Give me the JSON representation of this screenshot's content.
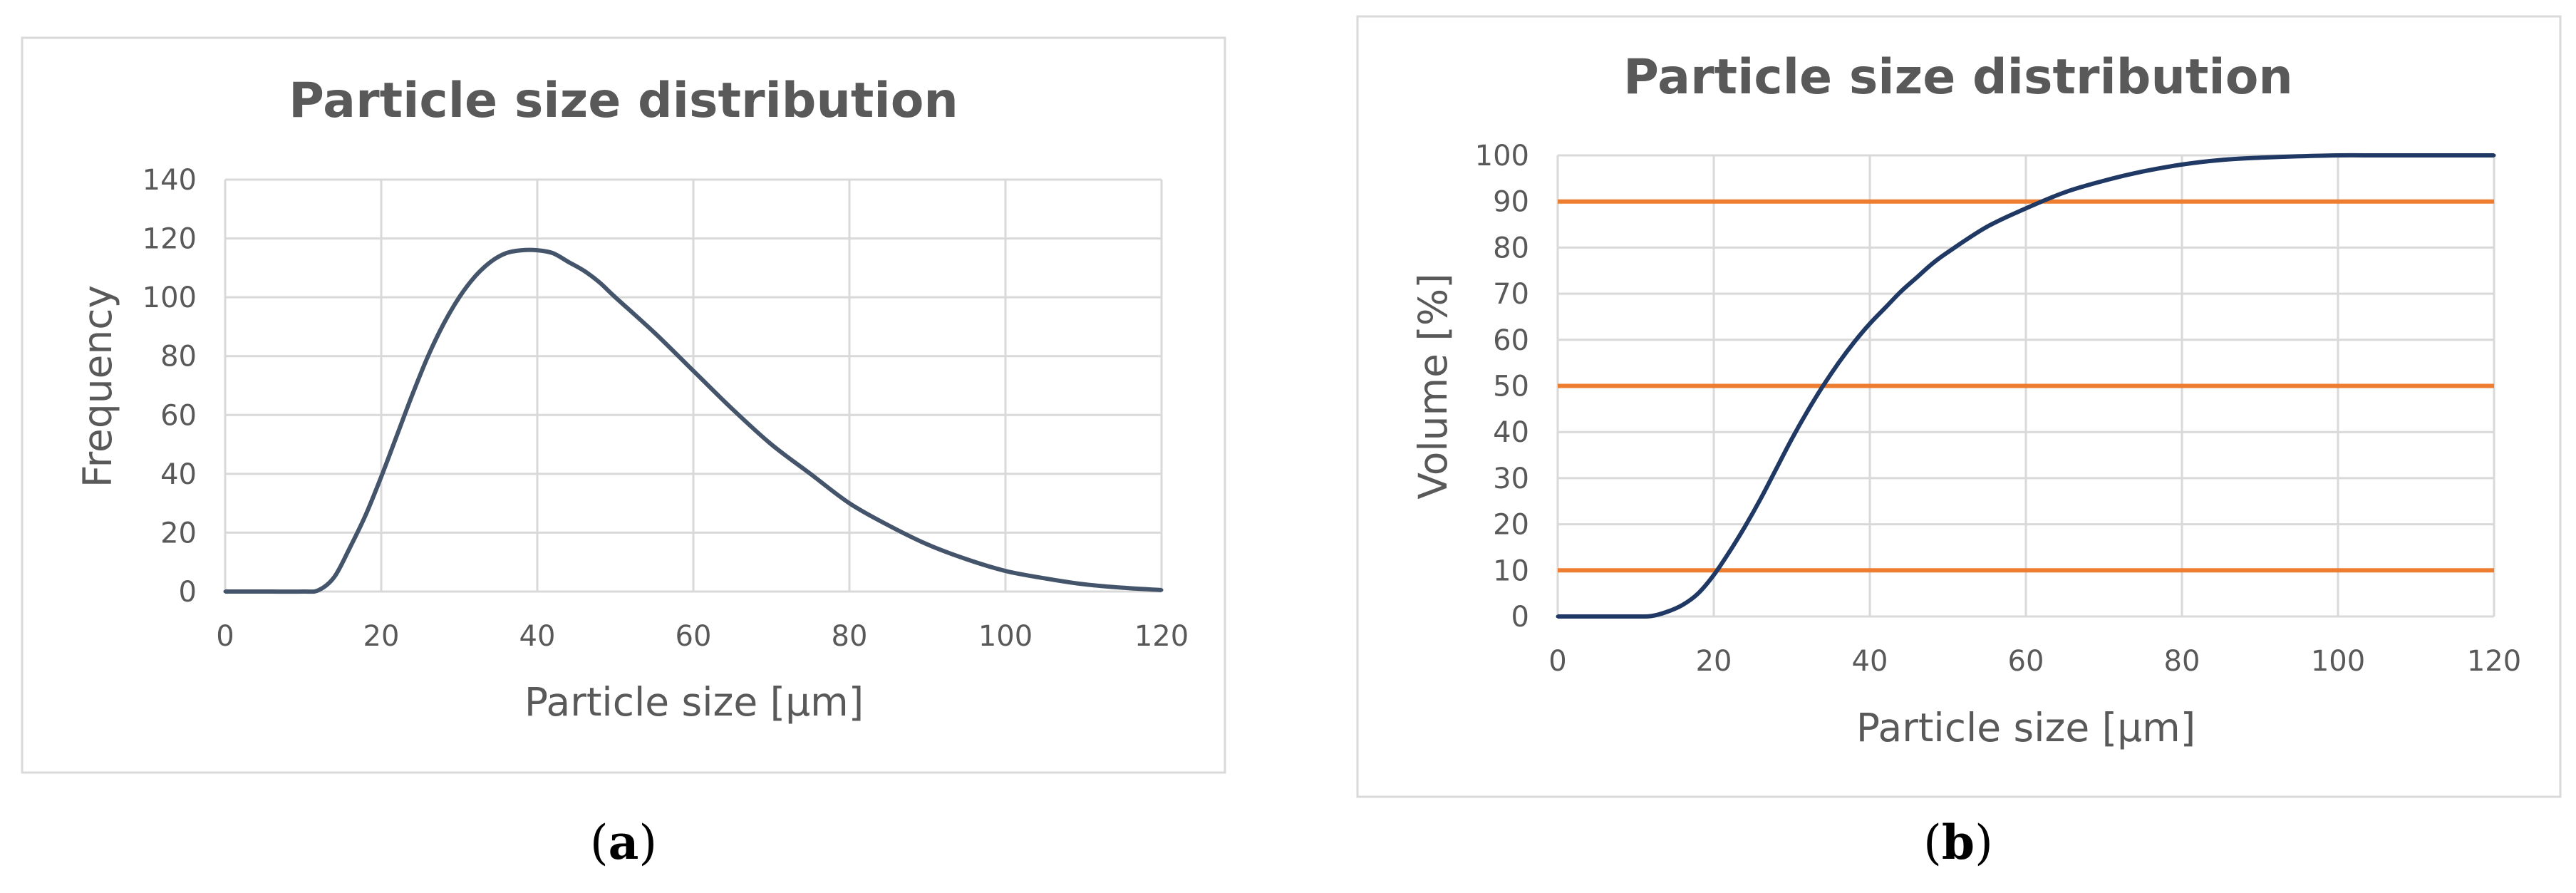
{
  "panels": [
    {
      "caption_open": "(",
      "caption_letter": "a",
      "caption_close": ")"
    },
    {
      "caption_open": "(",
      "caption_letter": "b",
      "caption_close": ")"
    }
  ],
  "chart_data": [
    {
      "type": "line",
      "title": "Particle size distribution",
      "xlabel": "Particle size [µm]",
      "ylabel": "Frequency",
      "xlim": [
        0,
        120
      ],
      "ylim": [
        0,
        140
      ],
      "xticks": [
        0,
        20,
        40,
        60,
        80,
        100,
        120
      ],
      "yticks": [
        0,
        20,
        40,
        60,
        80,
        100,
        120,
        140
      ],
      "grid": true,
      "legend": "none",
      "colors": {
        "line": "#44546a"
      },
      "series": [
        {
          "x": [
            0,
            5,
            10,
            12,
            14,
            16,
            18,
            20,
            22,
            24,
            26,
            28,
            30,
            32,
            34,
            36,
            38,
            40,
            42,
            44,
            46,
            48,
            50,
            55,
            60,
            65,
            70,
            75,
            80,
            85,
            90,
            95,
            100,
            105,
            110,
            115,
            120
          ],
          "values": [
            0,
            0,
            0,
            0.5,
            5,
            15,
            26,
            39,
            53,
            67,
            80,
            91,
            100,
            107,
            112,
            115,
            116,
            116,
            115,
            112,
            109,
            105,
            100,
            88,
            75,
            62,
            50,
            40,
            30,
            22.5,
            16,
            11,
            7,
            4.5,
            2.5,
            1.3,
            0.5
          ]
        }
      ]
    },
    {
      "type": "line",
      "title": "Particle size distribution",
      "xlabel": "Particle size [µm]",
      "ylabel": "Volume [%]",
      "xlim": [
        0,
        120
      ],
      "ylim": [
        0,
        100
      ],
      "xticks": [
        0,
        20,
        40,
        60,
        80,
        100,
        120
      ],
      "yticks": [
        0,
        10,
        20,
        30,
        40,
        50,
        60,
        70,
        80,
        90,
        100
      ],
      "grid": true,
      "legend": "none",
      "colors": {
        "curve": "#1f3864",
        "reference": "#ed7d31"
      },
      "reference_lines": [
        10,
        50,
        90
      ],
      "series": [
        {
          "x": [
            0,
            5,
            10,
            12,
            14,
            16,
            18,
            20,
            22,
            24,
            26,
            28,
            30,
            32,
            34,
            36,
            38,
            40,
            42,
            44,
            46,
            48,
            50,
            55,
            60,
            65,
            70,
            75,
            80,
            85,
            90,
            95,
            100,
            105,
            110,
            115,
            120
          ],
          "values": [
            0,
            0,
            0,
            0.1,
            1,
            2.5,
            5,
            9,
            14,
            19.5,
            25.5,
            32,
            38.5,
            44.5,
            50,
            55,
            59.5,
            63.5,
            67,
            70.5,
            73.5,
            76.5,
            79,
            84.5,
            88.5,
            92,
            94.5,
            96.5,
            98,
            99,
            99.5,
            99.8,
            100,
            100,
            100,
            100,
            100
          ]
        }
      ]
    }
  ]
}
